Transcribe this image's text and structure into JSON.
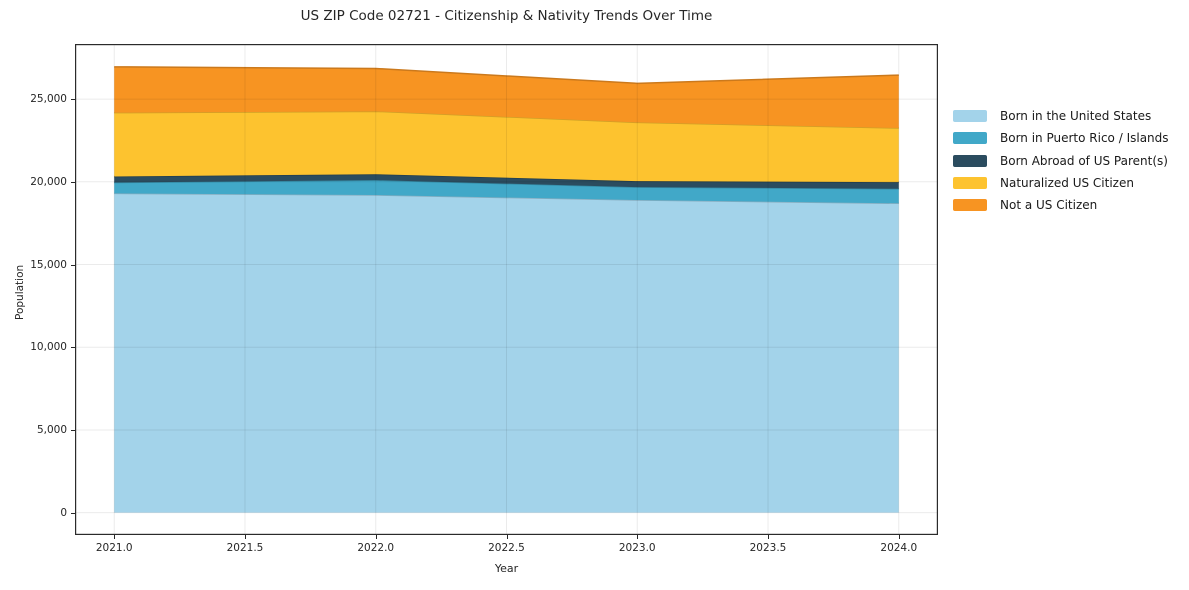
{
  "title": "US ZIP Code 02721 - Citizenship & Nativity Trends Over Time",
  "chart_data": {
    "type": "area",
    "stacked": true,
    "title": "US ZIP Code 02721 - Citizenship & Nativity Trends Over Time",
    "xlabel": "Year",
    "ylabel": "Population",
    "x": [
      2021,
      2022,
      2023,
      2024
    ],
    "series": [
      {
        "name": "Born in the United States",
        "color": "#a3d3ea",
        "values": [
          19300,
          19200,
          18900,
          18700
        ]
      },
      {
        "name": "Born in Puerto Rico / Islands",
        "color": "#41a8c8",
        "values": [
          660,
          900,
          780,
          880
        ]
      },
      {
        "name": "Born Abroad of US Parent(s)",
        "color": "#2b4c5f",
        "values": [
          360,
          360,
          360,
          400
        ]
      },
      {
        "name": "Naturalized US Citizen",
        "color": "#fdc32f",
        "values": [
          3860,
          3800,
          3550,
          3270
        ]
      },
      {
        "name": "Not a US Citizen",
        "color": "#f79422",
        "values": [
          2770,
          2590,
          2360,
          3200
        ]
      }
    ],
    "totals": [
      26950,
      26850,
      25950,
      26450
    ],
    "xlim": [
      2020.85,
      2024.15
    ],
    "ylim": [
      -1350,
      28330
    ],
    "x_ticks": [
      {
        "v": 2021.0,
        "label": "2021.0"
      },
      {
        "v": 2021.5,
        "label": "2021.5"
      },
      {
        "v": 2022.0,
        "label": "2022.0"
      },
      {
        "v": 2022.5,
        "label": "2022.5"
      },
      {
        "v": 2023.0,
        "label": "2023.0"
      },
      {
        "v": 2023.5,
        "label": "2023.5"
      },
      {
        "v": 2024.0,
        "label": "2024.0"
      }
    ],
    "y_ticks": [
      {
        "v": 0,
        "label": "0"
      },
      {
        "v": 5000,
        "label": "5,000"
      },
      {
        "v": 10000,
        "label": "10,000"
      },
      {
        "v": 15000,
        "label": "15,000"
      },
      {
        "v": 20000,
        "label": "20,000"
      },
      {
        "v": 25000,
        "label": "25,000"
      }
    ],
    "grid": true,
    "grid_color_rgba": "rgba(0,0,0,0.08)",
    "spine_color": "#2b2b2b",
    "legend_position": "right"
  }
}
